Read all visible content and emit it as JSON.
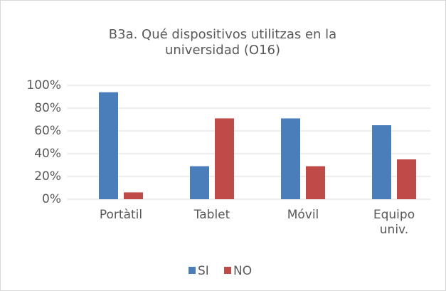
{
  "chart_data": {
    "type": "bar",
    "title": "B3a. Qué dispositivos utilitzas en la universidad (O16)",
    "categories": [
      "Portàtil",
      "Tablet",
      "Móvil",
      "Equipo univ."
    ],
    "series": [
      {
        "name": "SI",
        "color": "#4a7ebb",
        "values": [
          94,
          29,
          71,
          65
        ]
      },
      {
        "name": "NO",
        "color": "#be4b48",
        "values": [
          6,
          71,
          29,
          35
        ]
      }
    ],
    "ylim": [
      0,
      100
    ],
    "yticks": [
      {
        "value": 0,
        "label": "0%"
      },
      {
        "value": 20,
        "label": "20%"
      },
      {
        "value": 40,
        "label": "40%"
      },
      {
        "value": 60,
        "label": "60%"
      },
      {
        "value": 80,
        "label": "80%"
      },
      {
        "value": 100,
        "label": "100%"
      }
    ],
    "grid": true,
    "legend": "bottom"
  }
}
